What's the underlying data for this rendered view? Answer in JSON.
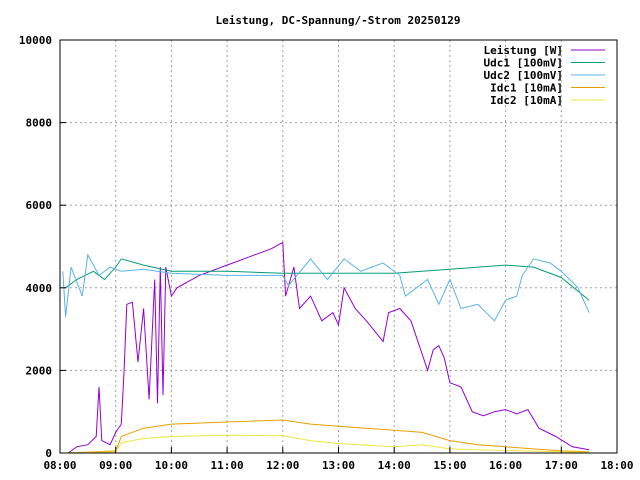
{
  "chart_data": {
    "type": "line",
    "title": "Leistung, DC-Spannung/-Strom 20250129",
    "xlabel": "",
    "ylabel": "",
    "xlim": [
      8,
      18
    ],
    "ylim": [
      0,
      10000
    ],
    "x_ticks": [
      "08:00",
      "09:00",
      "10:00",
      "11:00",
      "12:00",
      "13:00",
      "14:00",
      "15:00",
      "16:00",
      "17:00",
      "18:00"
    ],
    "y_ticks": [
      "0",
      "2000",
      "4000",
      "6000",
      "8000",
      "10000"
    ],
    "grid": true,
    "legend_position": "top-right",
    "series": [
      {
        "name": "Leistung [W]",
        "color": "#9400d3",
        "x": [
          8.15,
          8.3,
          8.5,
          8.65,
          8.7,
          8.75,
          8.9,
          9.0,
          9.1,
          9.15,
          9.2,
          9.3,
          9.4,
          9.5,
          9.6,
          9.7,
          9.75,
          9.8,
          9.85,
          9.9,
          10.0,
          10.1,
          10.5,
          11.0,
          11.5,
          11.8,
          12.0,
          12.05,
          12.2,
          12.3,
          12.5,
          12.7,
          12.9,
          13.0,
          13.1,
          13.3,
          13.5,
          13.8,
          13.9,
          14.1,
          14.3,
          14.5,
          14.6,
          14.7,
          14.8,
          14.9,
          15.0,
          15.2,
          15.4,
          15.6,
          15.8,
          16.0,
          16.2,
          16.4,
          16.6,
          16.9,
          17.2,
          17.5
        ],
        "y": [
          0,
          150,
          200,
          400,
          1600,
          300,
          200,
          500,
          700,
          2000,
          3600,
          3650,
          2200,
          3500,
          1300,
          4200,
          1200,
          4500,
          1400,
          4500,
          3800,
          4000,
          4300,
          4550,
          4800,
          4950,
          5100,
          3800,
          4500,
          3500,
          3800,
          3200,
          3400,
          3100,
          4000,
          3500,
          3200,
          2700,
          3400,
          3500,
          3200,
          2400,
          2000,
          2500,
          2600,
          2300,
          1700,
          1600,
          1000,
          900,
          1000,
          1050,
          950,
          1050,
          600,
          400,
          150,
          80
        ]
      },
      {
        "name": "Udc1 [100mV]",
        "color": "#009e73",
        "x": [
          8.1,
          8.3,
          8.6,
          8.8,
          9.0,
          9.1,
          9.5,
          10.0,
          11.0,
          12.0,
          13.0,
          14.0,
          15.0,
          16.0,
          16.5,
          17.0,
          17.5
        ],
        "y": [
          4000,
          4200,
          4400,
          4200,
          4500,
          4700,
          4550,
          4400,
          4400,
          4350,
          4350,
          4350,
          4450,
          4550,
          4500,
          4250,
          3700
        ]
      },
      {
        "name": "Udc2 [100mV]",
        "color": "#56b4e9",
        "x": [
          8.05,
          8.1,
          8.2,
          8.4,
          8.5,
          8.7,
          8.9,
          9.1,
          9.5,
          10.0,
          11.0,
          12.0,
          12.1,
          12.5,
          12.8,
          13.1,
          13.4,
          13.6,
          13.8,
          14.1,
          14.2,
          14.4,
          14.6,
          14.8,
          15.0,
          15.2,
          15.5,
          15.8,
          16.0,
          16.2,
          16.3,
          16.5,
          16.8,
          17.0,
          17.3,
          17.5
        ],
        "y": [
          4400,
          3300,
          4500,
          3800,
          4800,
          4300,
          4500,
          4400,
          4450,
          4350,
          4300,
          4300,
          4050,
          4700,
          4200,
          4700,
          4400,
          4500,
          4600,
          4300,
          3800,
          4000,
          4200,
          3600,
          4200,
          3500,
          3600,
          3200,
          3700,
          3800,
          4300,
          4700,
          4600,
          4400,
          4000,
          3400
        ]
      },
      {
        "name": "Idc1 [10mA]",
        "color": "#e69f00",
        "x": [
          8.1,
          9.0,
          9.1,
          9.5,
          10.0,
          11.0,
          12.0,
          12.5,
          13.0,
          14.0,
          14.5,
          15.0,
          15.5,
          16.0,
          16.5,
          17.0,
          17.5
        ],
        "y": [
          0,
          50,
          400,
          600,
          700,
          750,
          800,
          700,
          650,
          550,
          500,
          300,
          200,
          150,
          100,
          50,
          30
        ]
      },
      {
        "name": "Idc2 [10mA]",
        "color": "#f0e442",
        "x": [
          8.1,
          9.0,
          9.1,
          9.5,
          10.0,
          11.0,
          12.0,
          12.5,
          13.0,
          14.0,
          14.5,
          15.0,
          15.5,
          16.0,
          17.0,
          17.5
        ],
        "y": [
          0,
          30,
          250,
          350,
          400,
          430,
          420,
          300,
          230,
          150,
          200,
          100,
          80,
          60,
          30,
          15
        ]
      }
    ]
  }
}
